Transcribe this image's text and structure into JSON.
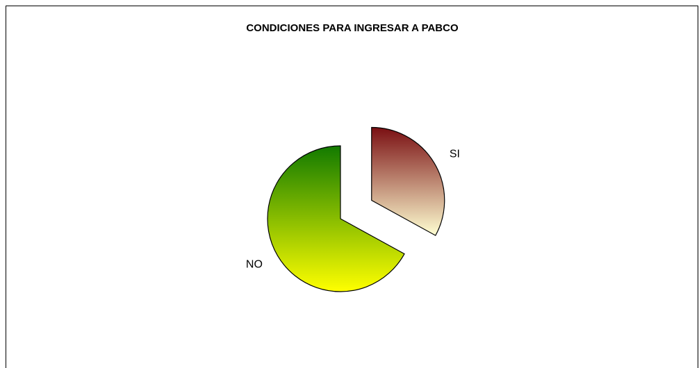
{
  "chart_data": {
    "type": "pie",
    "title": "CONDICIONES PARA INGRESAR A PABCO",
    "categories": [
      "SI",
      "NO"
    ],
    "values": [
      33,
      67
    ],
    "colors": [
      [
        "#7a0f12",
        "#ffffd2"
      ],
      [
        "#127a00",
        "#ffff00"
      ]
    ]
  }
}
